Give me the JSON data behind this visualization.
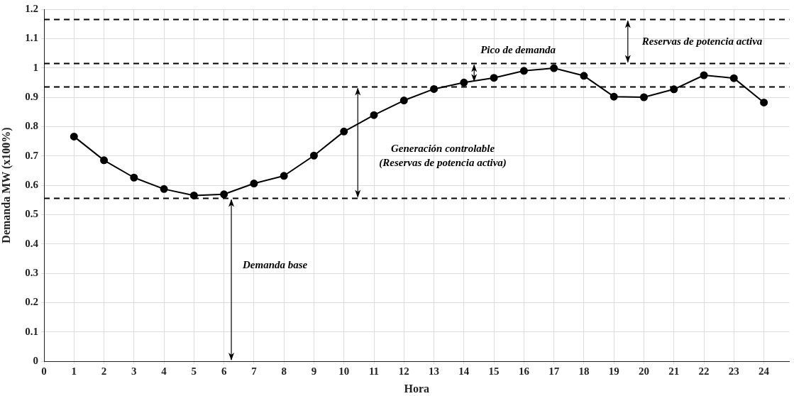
{
  "chart_data": {
    "type": "line",
    "xlabel": "Hora",
    "ylabel": "Demanda MW (x100%)",
    "x": [
      1,
      2,
      3,
      4,
      5,
      6,
      7,
      8,
      9,
      10,
      11,
      12,
      13,
      14,
      15,
      16,
      17,
      18,
      19,
      20,
      21,
      22,
      23,
      24
    ],
    "series": [
      {
        "color": "#000000",
        "values": [
          0.766,
          0.685,
          0.626,
          0.587,
          0.565,
          0.569,
          0.606,
          0.632,
          0.701,
          0.783,
          0.839,
          0.889,
          0.928,
          0.95,
          0.966,
          0.99,
          0.999,
          0.973,
          0.902,
          0.9,
          0.927,
          0.975,
          0.965,
          0.882
        ]
      }
    ],
    "xlim": [
      0,
      24.85
    ],
    "xticks": [
      0,
      1,
      2,
      3,
      4,
      5,
      6,
      7,
      8,
      9,
      10,
      11,
      12,
      13,
      14,
      15,
      16,
      17,
      18,
      19,
      20,
      21,
      22,
      23,
      24
    ],
    "ylim": [
      0,
      1.2
    ],
    "yticks": [
      0,
      0.1,
      0.2,
      0.3,
      0.4,
      0.5,
      0.6,
      0.7,
      0.8,
      0.9,
      1,
      1.1,
      1.2
    ],
    "ref_lines": [
      {
        "axis": "y",
        "value": 0.555,
        "color": "#000000",
        "line_style": "dashed"
      },
      {
        "axis": "y",
        "value": 0.935,
        "color": "#000000",
        "line_style": "dashed"
      },
      {
        "axis": "y",
        "value": 1.015,
        "color": "#000000",
        "line_style": "dashed"
      },
      {
        "axis": "y",
        "value": 1.165,
        "color": "#000000",
        "line_style": "dashed"
      }
    ],
    "annotations": [
      "Demanda base",
      "Generación controlable\n(Reservas de potencia activa)",
      "Pico de demanda",
      "Reservas de potencia activa"
    ],
    "grid": true,
    "marker": "circle",
    "line_style": "solid",
    "legend": false
  }
}
